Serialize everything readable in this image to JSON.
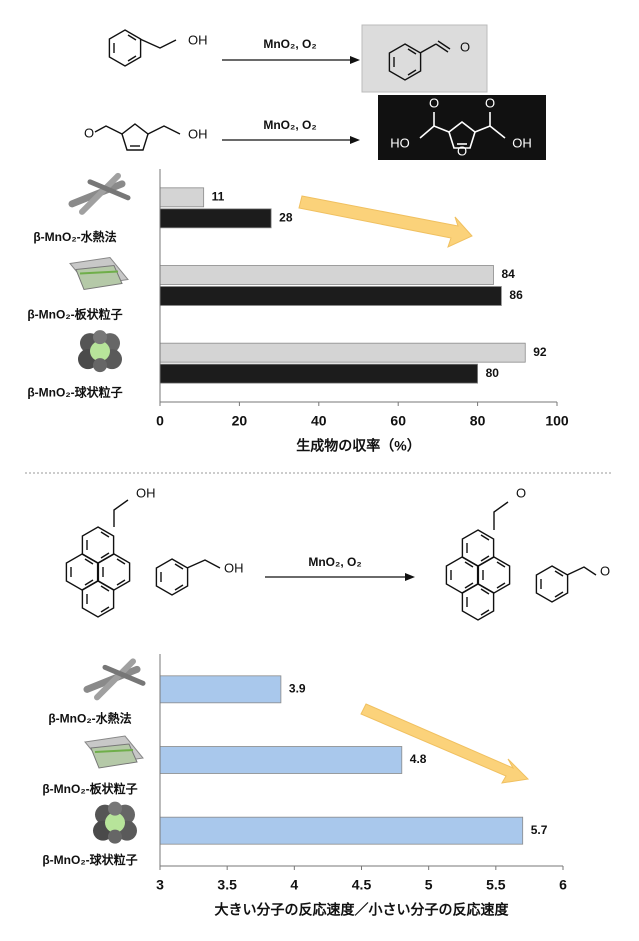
{
  "reactions": [
    {
      "reactant_atoms": [
        "OH"
      ],
      "reagents": "MnO₂, O₂",
      "product_atoms": [
        "O"
      ]
    },
    {
      "reactant_atoms": [
        "O",
        "OH"
      ],
      "reagents": "MnO₂, O₂",
      "product_atoms": [
        "HO",
        "O",
        "O",
        "O",
        "OH"
      ]
    },
    {
      "reactant_atoms": [
        "OH",
        "OH"
      ],
      "reagents": "MnO₂, O₂",
      "product_atoms": [
        "O",
        "O"
      ]
    }
  ],
  "chart_data": [
    {
      "type": "bar",
      "orientation": "horizontal",
      "categories": [
        "β-MnO₂-水熱法",
        "β-MnO₂-板状粒子",
        "β-MnO₂-球状粒子"
      ],
      "series": [
        {
          "color": "#d4d4d4",
          "values": [
            11,
            84,
            92
          ]
        },
        {
          "color": "#1c1c1c",
          "values": [
            28,
            86,
            80
          ]
        }
      ],
      "xlim": [
        0,
        100
      ],
      "xticks": [
        0,
        20,
        40,
        60,
        80,
        100
      ],
      "xlabel": "生成物の収率（%）",
      "grid": false
    },
    {
      "type": "bar",
      "orientation": "horizontal",
      "categories": [
        "β-MnO₂-水熱法",
        "β-MnO₂-板状粒子",
        "β-MnO₂-球状粒子"
      ],
      "series": [
        {
          "color": "#a9c8ec",
          "values": [
            3.9,
            4.8,
            5.7
          ]
        }
      ],
      "xlim": [
        3,
        6
      ],
      "xticks": [
        3,
        3.5,
        4,
        4.5,
        5,
        5.5,
        6
      ],
      "xlabel": "大きい分子の反応速度／小さい分子の反応速度",
      "grid": false
    }
  ]
}
